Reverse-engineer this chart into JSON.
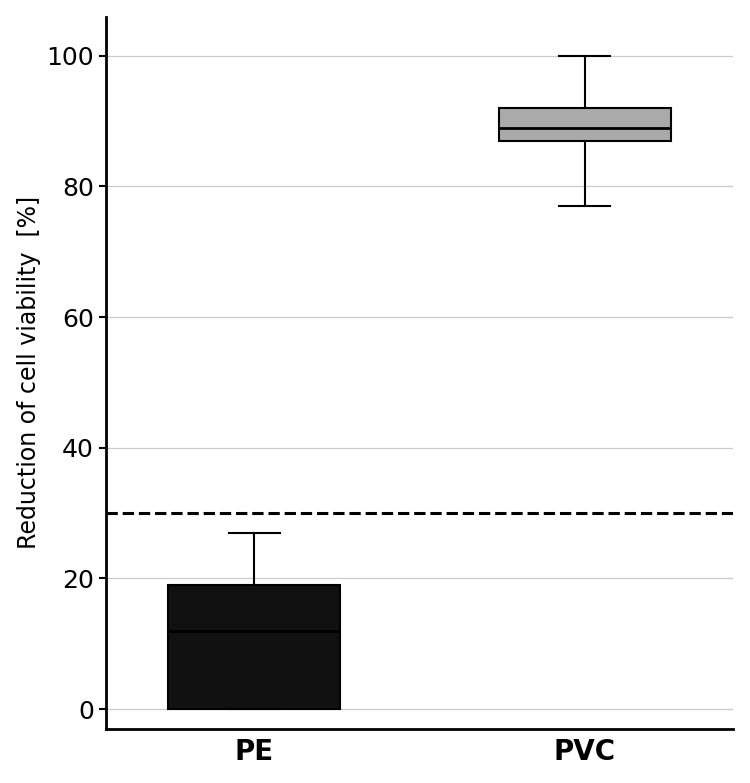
{
  "categories": [
    "PE",
    "PVC"
  ],
  "PE": {
    "whisker_low": 0,
    "q1": 0,
    "median": 12,
    "q3": 19,
    "whisker_high": 27,
    "color": "#111111"
  },
  "PVC": {
    "whisker_low": 77,
    "q1": 87,
    "median": 89,
    "q3": 92,
    "whisker_high": 100,
    "color": "#aaaaaa"
  },
  "dashed_line_y": 30,
  "ylabel": "Reduction of cell viability  [%]",
  "ylim": [
    -3,
    106
  ],
  "yticks": [
    0,
    20,
    40,
    60,
    80,
    100
  ],
  "box_width": 0.52,
  "background_color": "#ffffff",
  "grid_color": "#cccccc",
  "axis_color": "#000000",
  "ylabel_fontsize": 17,
  "xtick_fontsize": 20,
  "ytick_fontsize": 18
}
